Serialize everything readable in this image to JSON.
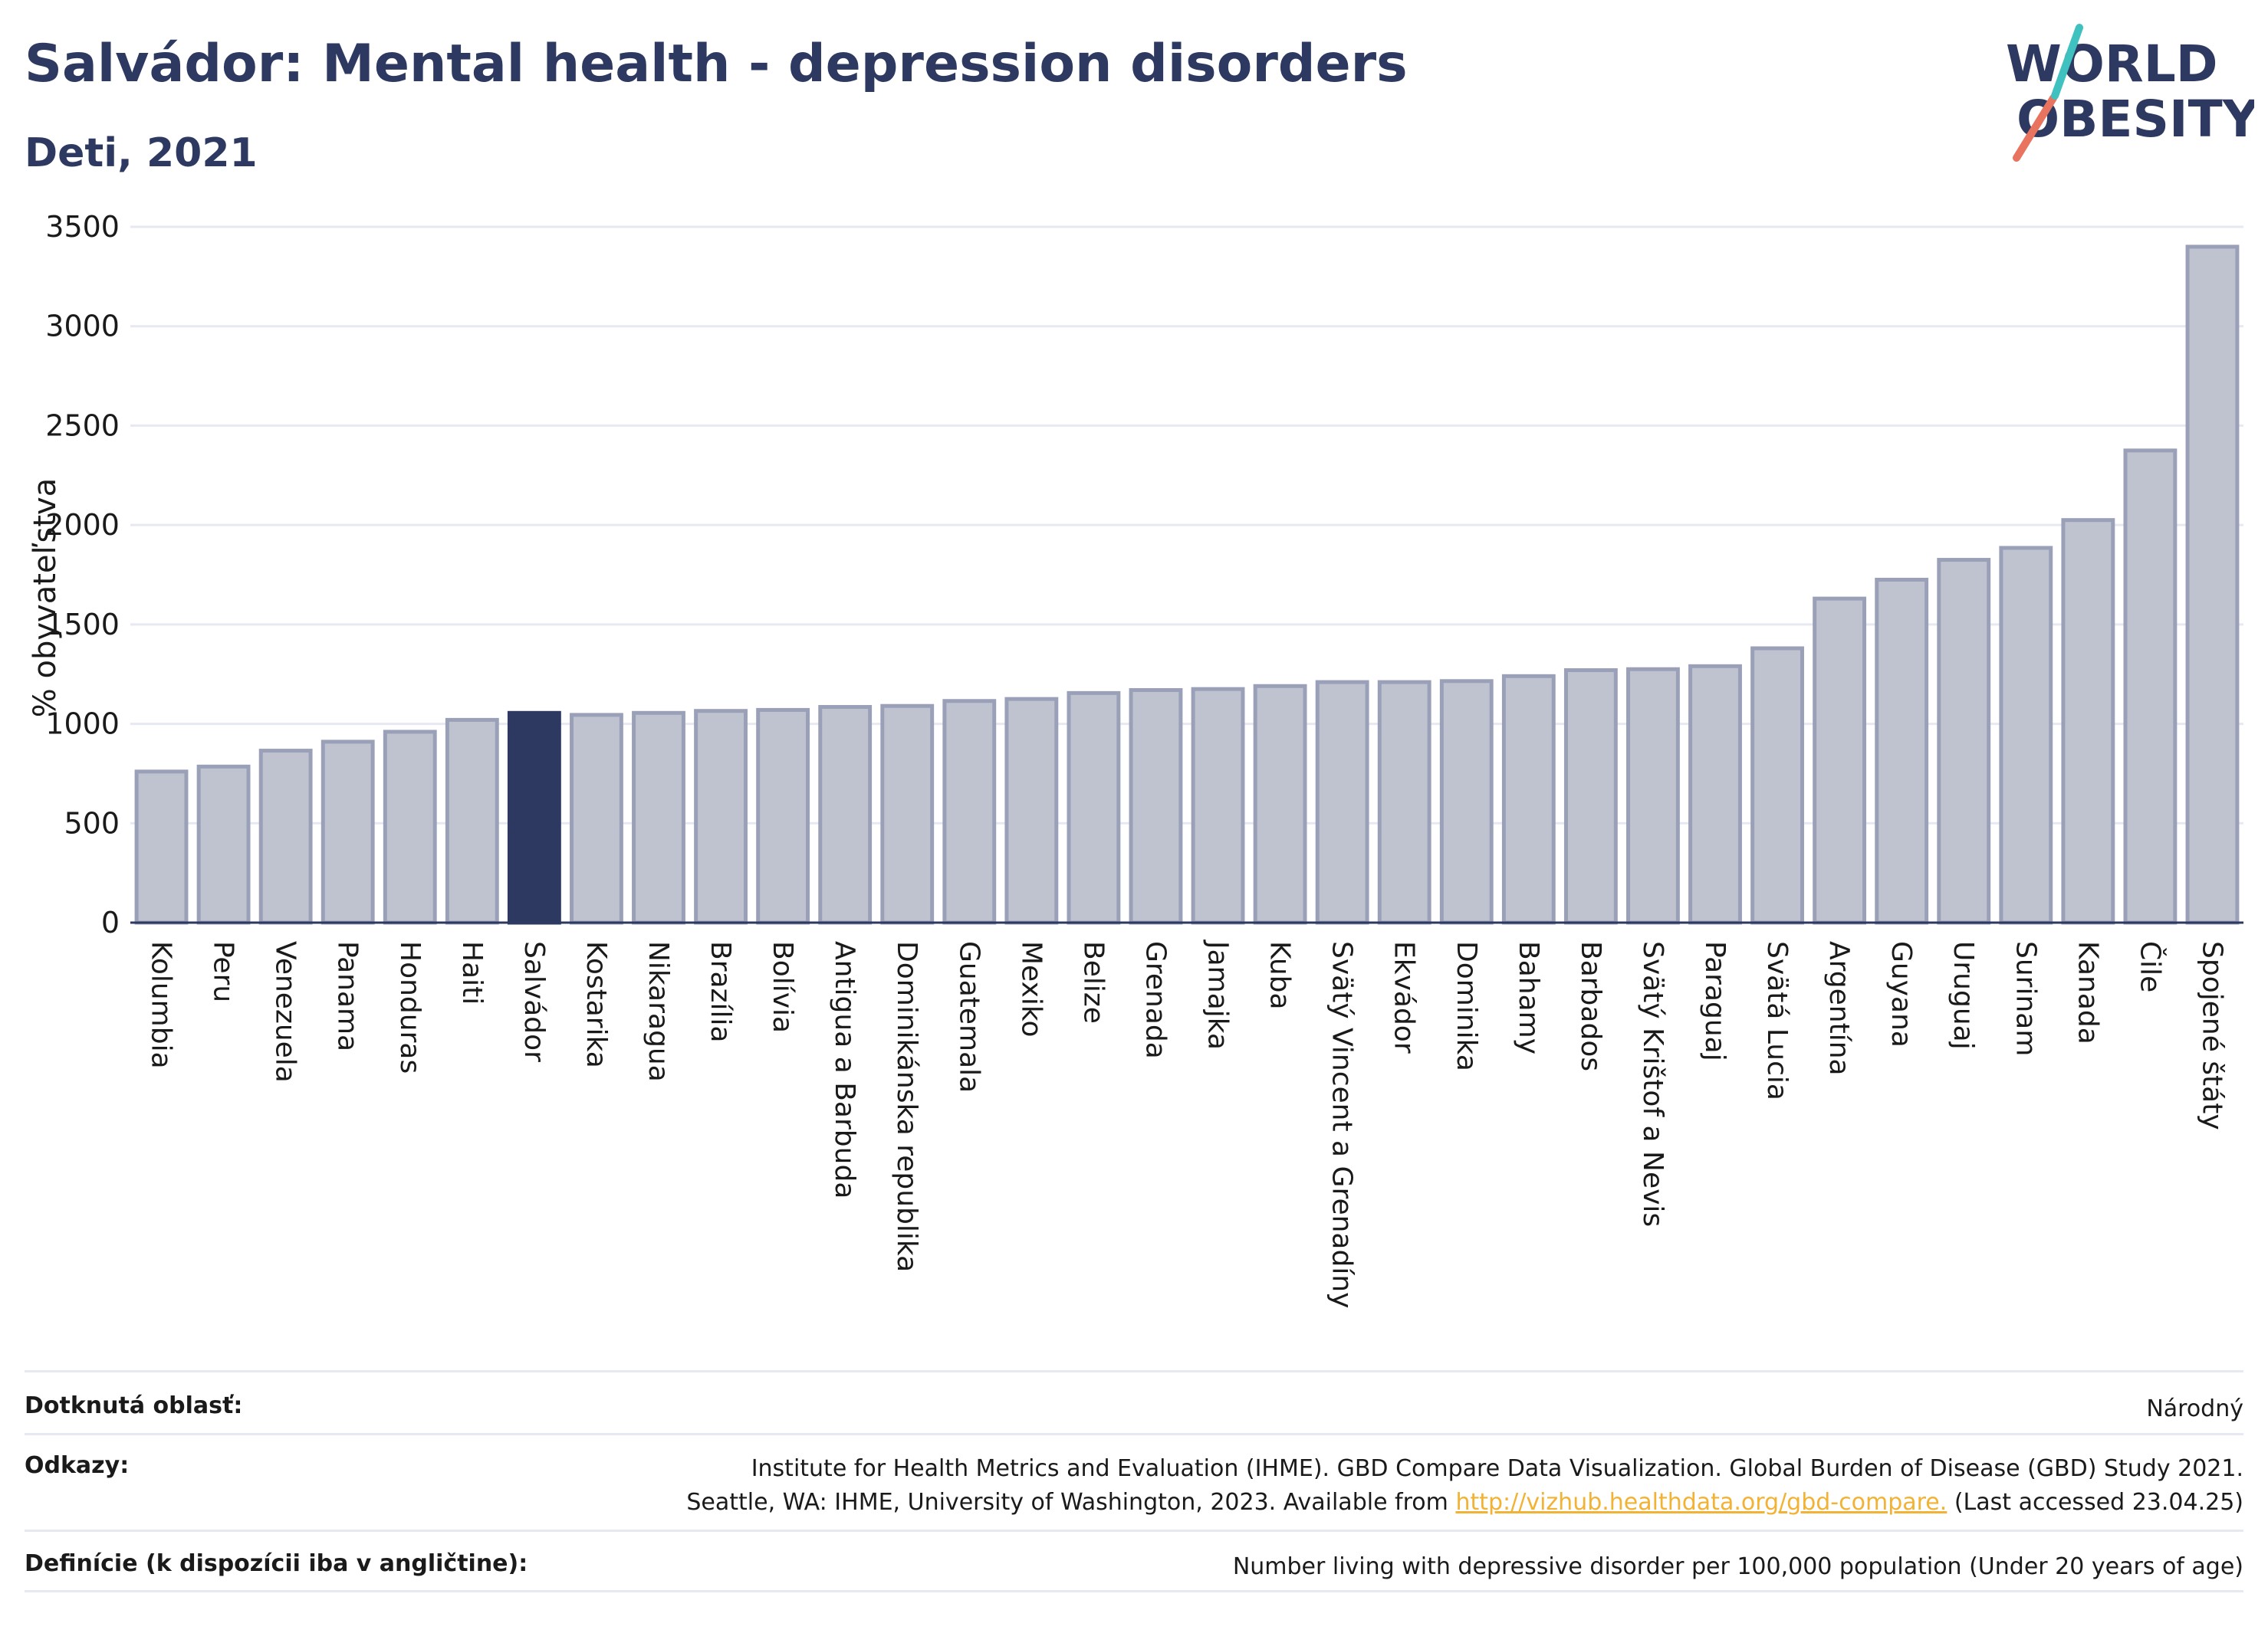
{
  "header": {
    "title": "Salvádor: Mental health - depression disorders",
    "subtitle": "Deti, 2021"
  },
  "logo": {
    "line1": "WORLD",
    "line2": "OBESITY"
  },
  "colors": {
    "highlight": "#2d3961",
    "bar_fill": "#bfc3d0",
    "bar_stroke": "#9aa0b8",
    "grid": "#e6e9f1",
    "text": "#2d3961",
    "link": "#f2b233",
    "logo_red": "#e8735e",
    "logo_teal": "#3fc1c0"
  },
  "chart_data": {
    "type": "bar",
    "title": "",
    "xlabel": "",
    "ylabel": "% obyvateľstva",
    "ylim": [
      0,
      3500
    ],
    "yticks": [
      0,
      500,
      1000,
      1500,
      2000,
      2500,
      3000,
      3500
    ],
    "grid": true,
    "highlight": "Salvádor",
    "categories": [
      "Kolumbia",
      "Peru",
      "Venezuela",
      "Panama",
      "Honduras",
      "Haiti",
      "Salvádor",
      "Kostarika",
      "Nikaragua",
      "Brazília",
      "Bolívia",
      "Antigua a Barbuda",
      "Dominikánska republika",
      "Guatemala",
      "Mexiko",
      "Belize",
      "Grenada",
      "Jamajka",
      "Kuba",
      "Svätý Vincent a Grenadíny",
      "Ekvádor",
      "Dominika",
      "Bahamy",
      "Barbados",
      "Svätý Krištof a Nevis",
      "Paraguaj",
      "Svätá Lucia",
      "Argentína",
      "Guyana",
      "Uruguaj",
      "Surinam",
      "Kanada",
      "Čile",
      "Spojené štáty"
    ],
    "values": [
      760,
      785,
      865,
      910,
      960,
      1020,
      1055,
      1045,
      1055,
      1065,
      1070,
      1085,
      1090,
      1115,
      1125,
      1155,
      1170,
      1175,
      1190,
      1210,
      1210,
      1215,
      1240,
      1270,
      1275,
      1290,
      1380,
      1630,
      1725,
      1825,
      1885,
      2025,
      2375,
      3400
    ]
  },
  "footer": {
    "area_label": "Dotknutá oblasť:",
    "area_value": "Národný",
    "refs_label": "Odkazy:",
    "refs_line1": "Institute for Health Metrics and Evaluation (IHME). GBD Compare Data Visualization. Global Burden of Disease (GBD) Study 2021.",
    "refs_line2_pre": "Seattle, WA: IHME, University of Washington, 2023. Available from",
    "refs_link": "http://vizhub.healthdata.org/gbd-compare.",
    "refs_line2_post": "(Last accessed 23.04.25)",
    "def_label": "Definície (k dispozícii iba v angličtine):",
    "def_value": "Number living with depressive disorder per 100,000 population (Under 20 years of age)"
  }
}
